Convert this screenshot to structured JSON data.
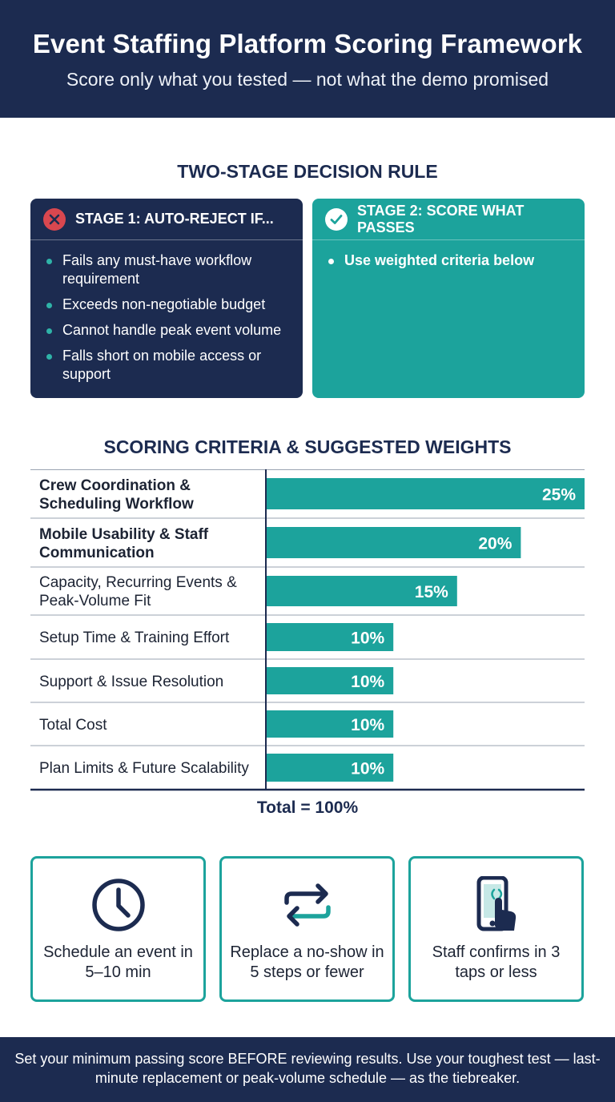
{
  "header": {
    "title": "Event Staffing Platform Scoring Framework",
    "subtitle": "Score only what you tested — not what the demo promised"
  },
  "decision": {
    "title": "TWO-STAGE DECISION RULE",
    "stage1": {
      "title": "STAGE 1: AUTO-REJECT IF...",
      "icon": "x-circle-icon",
      "items": [
        "Fails any must-have workflow requirement",
        "Exceeds non-negotiable budget",
        "Cannot handle peak event volume",
        "Falls short on mobile access or support"
      ]
    },
    "stage2": {
      "title": "STAGE 2: SCORE WHAT PASSES",
      "icon": "check-circle-icon",
      "items": [
        "Use weighted criteria below"
      ]
    }
  },
  "chart_data": {
    "type": "bar",
    "orientation": "horizontal",
    "title": "SCORING CRITERIA & SUGGESTED WEIGHTS",
    "categories": [
      "Crew Coordination & Scheduling Workflow",
      "Mobile Usability & Staff Communication",
      "Capacity, Recurring Events & Peak-Volume Fit",
      "Setup Time & Training Effort",
      "Support & Issue Resolution",
      "Total Cost",
      "Plan Limits & Future Scalability"
    ],
    "values": [
      25,
      20,
      15,
      10,
      10,
      10,
      10
    ],
    "value_labels": [
      "25%",
      "20%",
      "15%",
      "10%",
      "10%",
      "10%",
      "10%"
    ],
    "bold_categories": [
      0,
      1
    ],
    "xlim": [
      0,
      25
    ],
    "bar_color": "#1ca39c",
    "total_label": "Total = 100%"
  },
  "cards": [
    {
      "icon": "clock-icon",
      "text": "Schedule an event in 5–10 min"
    },
    {
      "icon": "swap-arrows-icon",
      "text": "Replace a no-show in 5 steps or fewer"
    },
    {
      "icon": "phone-tap-icon",
      "text": "Staff confirms in 3 taps or less"
    }
  ],
  "footer": {
    "text": "Set your minimum passing score BEFORE reviewing results. Use your toughest test — last-minute replacement or peak-volume schedule — as the tiebreaker."
  },
  "colors": {
    "navy": "#1c2b50",
    "teal": "#1ca39c",
    "reject_red": "#d9474f"
  }
}
